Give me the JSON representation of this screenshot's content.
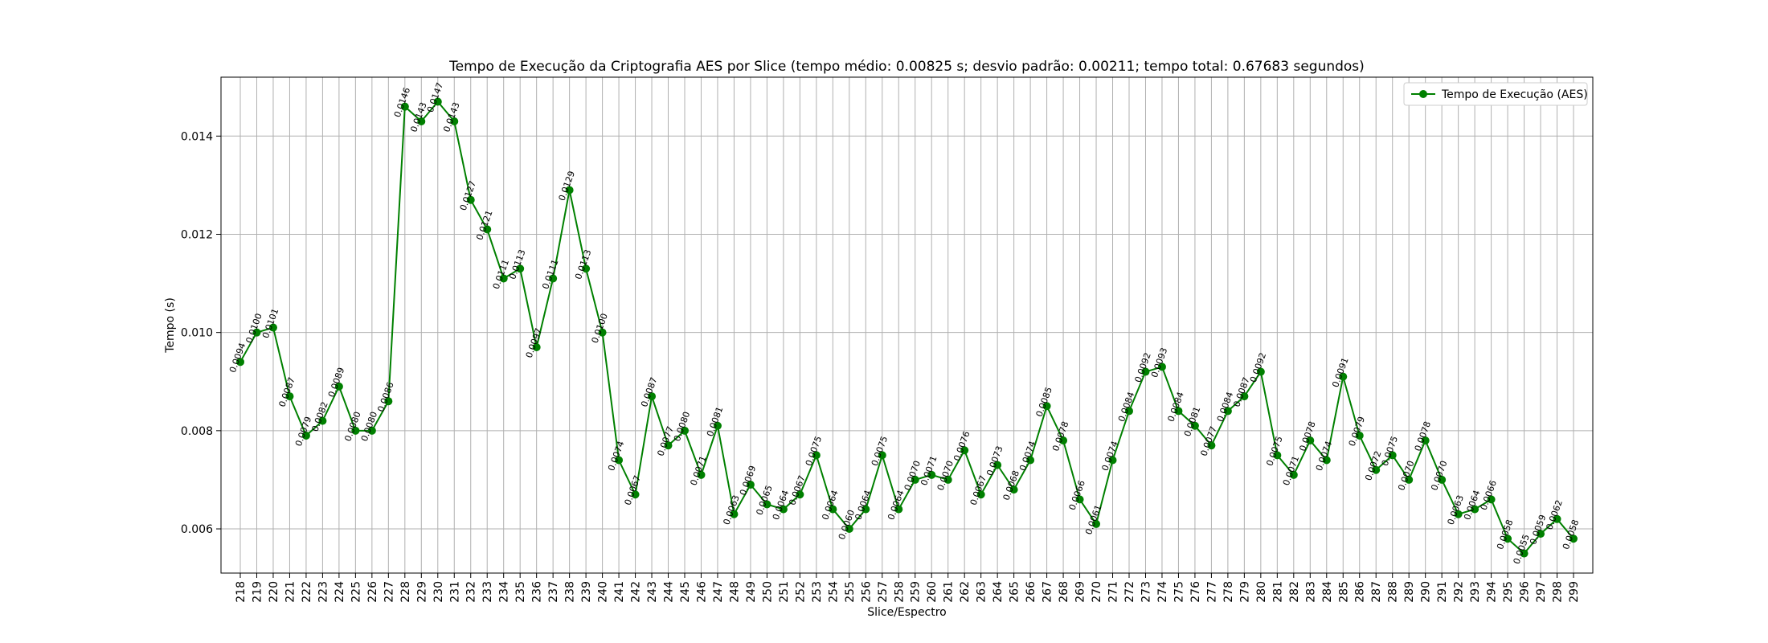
{
  "chart_data": {
    "type": "line",
    "title": "Tempo de Execução da Criptografia AES por Slice (tempo médio: 0.00825 s; desvio padrão: 0.00211; tempo total: 0.67683 segundos)",
    "xlabel": "Slice/Espectro",
    "ylabel": "Tempo (s)",
    "ylim": [
      0.0051,
      0.0152
    ],
    "yticks": [
      0.006,
      0.008,
      0.01,
      0.012,
      0.014
    ],
    "ytick_labels": [
      "0.006",
      "0.008",
      "0.010",
      "0.012",
      "0.014"
    ],
    "grid": true,
    "legend": "top-right",
    "color": "#008000",
    "series": [
      {
        "name": "Tempo de Execução (AES)"
      }
    ],
    "x": [
      218,
      219,
      220,
      221,
      222,
      223,
      224,
      225,
      226,
      227,
      228,
      229,
      230,
      231,
      232,
      233,
      234,
      235,
      236,
      237,
      238,
      239,
      240,
      241,
      242,
      243,
      244,
      245,
      246,
      247,
      248,
      249,
      250,
      251,
      252,
      253,
      254,
      255,
      256,
      257,
      258,
      259,
      260,
      261,
      262,
      263,
      264,
      265,
      266,
      267,
      268,
      269,
      270,
      271,
      272,
      273,
      274,
      275,
      276,
      277,
      278,
      279,
      280,
      281,
      282,
      283,
      284,
      285,
      286,
      287,
      288,
      289,
      290,
      291,
      292,
      293,
      294,
      295,
      296,
      297,
      298,
      299
    ],
    "values": [
      0.0094,
      0.01,
      0.0101,
      0.0087,
      0.0079,
      0.0082,
      0.0089,
      0.008,
      0.008,
      0.0086,
      0.0146,
      0.0143,
      0.0147,
      0.0143,
      0.0127,
      0.0121,
      0.0111,
      0.0113,
      0.0097,
      0.0111,
      0.0129,
      0.0113,
      0.01,
      0.0074,
      0.0067,
      0.0087,
      0.0077,
      0.008,
      0.0071,
      0.0081,
      0.0063,
      0.0069,
      0.0065,
      0.0064,
      0.0067,
      0.0075,
      0.0064,
      0.006,
      0.0064,
      0.0075,
      0.0064,
      0.007,
      0.0071,
      0.007,
      0.0076,
      0.0067,
      0.0073,
      0.0068,
      0.0074,
      0.0085,
      0.0078,
      0.0066,
      0.0061,
      0.0074,
      0.0084,
      0.0092,
      0.0093,
      0.0084,
      0.0081,
      0.0077,
      0.0084,
      0.0087,
      0.0092,
      0.0075,
      0.0071,
      0.0078,
      0.0074,
      0.0091,
      0.0079,
      0.0072,
      0.0075,
      0.007,
      0.0078,
      0.007,
      0.0063,
      0.0064,
      0.0066,
      0.0058,
      0.0055,
      0.0059,
      0.0062,
      0.0058
    ],
    "data_labels": [
      "0.0094",
      "0.0100",
      "0.0101",
      "0.0087",
      "0.0079",
      "0.0082",
      "0.0089",
      "0.0080",
      "0.0080",
      "0.0086",
      "0.0146",
      "0.0143",
      "0.0147",
      "0.0143",
      "0.0127",
      "0.0121",
      "0.0111",
      "0.0113",
      "0.0097",
      "0.0111",
      "0.0129",
      "0.0113",
      "0.0100",
      "0.0074",
      "0.0067",
      "0.0087",
      "0.0077",
      "0.0080",
      "0.0071",
      "0.0081",
      "0.0063",
      "0.0069",
      "0.0065",
      "0.0064",
      "0.0067",
      "0.0075",
      "0.0064",
      "0.0060",
      "0.0064",
      "0.0075",
      "0.0064",
      "0.0070",
      "0.0071",
      "0.0070",
      "0.0076",
      "0.0067",
      "0.0073",
      "0.0068",
      "0.0074",
      "0.0085",
      "0.0078",
      "0.0066",
      "0.0061",
      "0.0074",
      "0.0084",
      "0.0092",
      "0.0093",
      "0.0084",
      "0.0081",
      "0.0077",
      "0.0084",
      "0.0087",
      "0.0092",
      "0.0075",
      "0.0071",
      "0.0078",
      "0.0074",
      "0.0091",
      "0.0079",
      "0.0072",
      "0.0075",
      "0.0070",
      "0.0078",
      "0.0070",
      "0.0063",
      "0.0064",
      "0.0066",
      "0.0058",
      "0.0055",
      "0.0059",
      "0.0062",
      "0.0058"
    ]
  }
}
